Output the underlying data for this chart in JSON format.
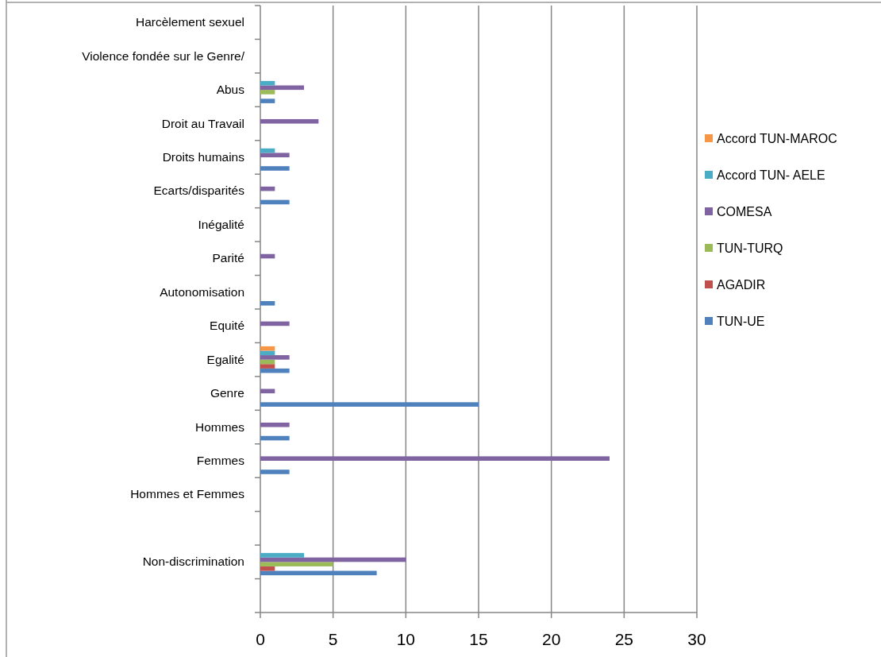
{
  "chart_data": {
    "type": "bar",
    "orientation": "horizontal",
    "categories": [
      "Harcèlement sexuel",
      "Violence fondée sur le Genre/",
      "Abus",
      "Droit au Travail",
      "Droits humains",
      "Ecarts/disparités",
      "Inégalité ",
      "Parité",
      "Autonomisation",
      "Equité",
      "Egalité",
      "Genre",
      "Hommes",
      "Femmes",
      "Hommes et Femmes",
      null,
      "Non-discrimination",
      null
    ],
    "series": [
      {
        "name": "TUN-UE",
        "color": "#4f81bd",
        "values": [
          0,
          0,
          1,
          0,
          2,
          2,
          0,
          0,
          1,
          0,
          2,
          15,
          2,
          2,
          0,
          0,
          8,
          0
        ]
      },
      {
        "name": "AGADIR",
        "color": "#c0504d",
        "values": [
          0,
          0,
          0,
          0,
          0,
          0,
          0,
          0,
          0,
          0,
          1,
          0,
          0,
          0,
          0,
          0,
          1,
          0
        ]
      },
      {
        "name": "TUN-TURQ",
        "color": "#9bbb59",
        "values": [
          0,
          0,
          1,
          0,
          0,
          0,
          0,
          0,
          0,
          0,
          1,
          0,
          0,
          0,
          0,
          0,
          5,
          0
        ]
      },
      {
        "name": "COMESA",
        "color": "#8064a2",
        "values": [
          0,
          0,
          3,
          4,
          2,
          1,
          0,
          1,
          0,
          2,
          2,
          1,
          2,
          24,
          0,
          0,
          10,
          0
        ]
      },
      {
        "name": "Accord TUN- AELE",
        "color": "#4bacc6",
        "values": [
          0,
          0,
          1,
          0,
          1,
          0,
          0,
          0,
          0,
          0,
          1,
          0,
          0,
          0,
          0,
          0,
          3,
          0
        ]
      },
      {
        "name": "Accord TUN-MAROC",
        "color": "#f79646",
        "values": [
          0,
          0,
          0,
          0,
          0,
          0,
          0,
          0,
          0,
          0,
          1,
          0,
          0,
          0,
          0,
          0,
          0,
          0
        ]
      }
    ],
    "xlim": [
      0,
      30
    ],
    "xticks": [
      0,
      5,
      10,
      15,
      20,
      25,
      30
    ],
    "grid": "x",
    "legend": "right"
  }
}
